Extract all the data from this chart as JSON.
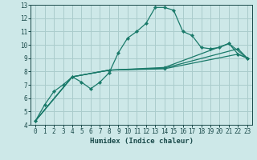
{
  "title": "",
  "xlabel": "Humidex (Indice chaleur)",
  "ylabel": "",
  "xlim": [
    -0.5,
    23.5
  ],
  "ylim": [
    4,
    13
  ],
  "xticks": [
    0,
    1,
    2,
    3,
    4,
    5,
    6,
    7,
    8,
    9,
    10,
    11,
    12,
    13,
    14,
    15,
    16,
    17,
    18,
    19,
    20,
    21,
    22,
    23
  ],
  "yticks": [
    4,
    5,
    6,
    7,
    8,
    9,
    10,
    11,
    12,
    13
  ],
  "bg_color": "#cde8e8",
  "grid_color": "#aacccc",
  "line_color": "#1a7a6a",
  "tick_color": "#1a4a4a",
  "series": [
    {
      "x": [
        0,
        1,
        2,
        3,
        4,
        5,
        6,
        7,
        8,
        9,
        10,
        11,
        12,
        13,
        14,
        15,
        16,
        17,
        18,
        19,
        20,
        21,
        22,
        23
      ],
      "y": [
        4.3,
        5.5,
        6.5,
        7.0,
        7.6,
        7.2,
        6.7,
        7.2,
        7.9,
        9.4,
        10.5,
        11.0,
        11.6,
        12.8,
        12.8,
        12.6,
        11.0,
        10.7,
        9.8,
        9.7,
        9.8,
        10.1,
        9.3,
        9.0
      ],
      "has_markers": true
    },
    {
      "x": [
        0,
        4,
        8,
        14,
        22,
        23
      ],
      "y": [
        4.3,
        7.6,
        8.1,
        8.2,
        9.3,
        9.0
      ],
      "has_markers": false
    },
    {
      "x": [
        0,
        4,
        8,
        14,
        22,
        23
      ],
      "y": [
        4.3,
        7.6,
        8.1,
        8.25,
        9.7,
        9.0
      ],
      "has_markers": false
    },
    {
      "x": [
        0,
        4,
        8,
        14,
        21,
        23
      ],
      "y": [
        4.3,
        7.6,
        8.1,
        8.3,
        10.1,
        9.0
      ],
      "has_markers": false
    }
  ]
}
